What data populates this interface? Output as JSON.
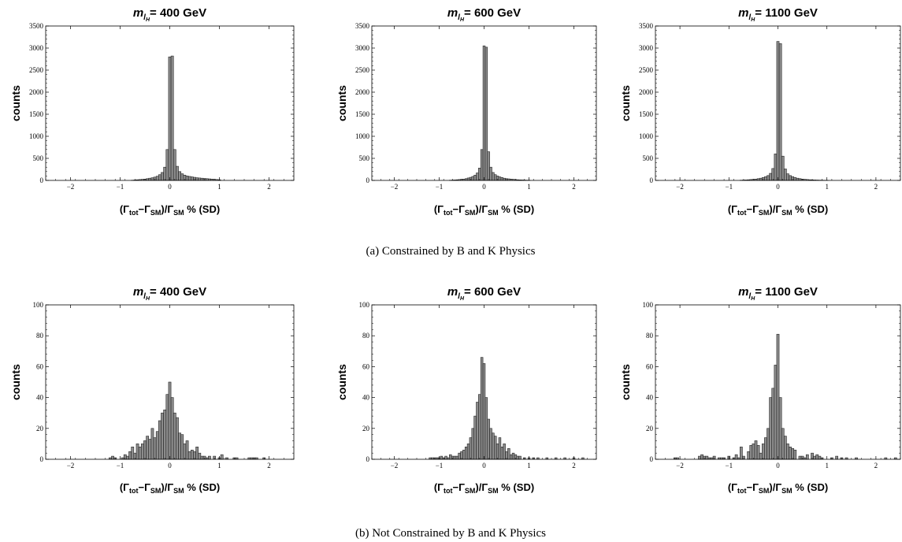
{
  "captions": {
    "a": "(a) Constrained by B and K Physics",
    "b": "(b) Not Constrained by B and K Physics"
  },
  "bin_width": 0.05,
  "chart_data": [
    {
      "type": "bar",
      "title": "m_{l_H} = 400 GeV",
      "title_mass": "400 GeV",
      "xlabel": "(Γtot−ΓSM)/ΓSM % (SD)",
      "ylabel": "counts",
      "xlim": [
        -2.5,
        2.5
      ],
      "ylim": [
        0,
        3500
      ],
      "xticks": [
        -2,
        -1,
        0,
        1,
        2
      ],
      "yticks": [
        0,
        500,
        1000,
        1500,
        2000,
        2500,
        3000,
        3500
      ],
      "x": [
        -0.75,
        -0.7,
        -0.65,
        -0.6,
        -0.55,
        -0.5,
        -0.45,
        -0.4,
        -0.35,
        -0.3,
        -0.25,
        -0.2,
        -0.15,
        -0.1,
        -0.05,
        0,
        0.05,
        0.1,
        0.15,
        0.2,
        0.25,
        0.3,
        0.35,
        0.4,
        0.45,
        0.5,
        0.55,
        0.6,
        0.65,
        0.7,
        0.75,
        0.8,
        0.85,
        0.9,
        0.95,
        1.0
      ],
      "values": [
        5,
        10,
        15,
        20,
        25,
        30,
        40,
        50,
        60,
        75,
        95,
        130,
        180,
        300,
        700,
        2800,
        2820,
        700,
        320,
        200,
        150,
        120,
        100,
        90,
        80,
        70,
        60,
        55,
        50,
        45,
        40,
        35,
        30,
        25,
        20,
        15
      ]
    },
    {
      "type": "bar",
      "title": "m_{l_H} = 600 GeV",
      "title_mass": "600 GeV",
      "xlabel": "(Γtot−ΓSM)/ΓSM % (SD)",
      "ylabel": "counts",
      "xlim": [
        -2.5,
        2.5
      ],
      "ylim": [
        0,
        3500
      ],
      "xticks": [
        -2,
        -1,
        0,
        1,
        2
      ],
      "yticks": [
        0,
        500,
        1000,
        1500,
        2000,
        2500,
        3000,
        3500
      ],
      "x": [
        -0.75,
        -0.7,
        -0.65,
        -0.6,
        -0.55,
        -0.5,
        -0.45,
        -0.4,
        -0.35,
        -0.3,
        -0.25,
        -0.2,
        -0.15,
        -0.1,
        -0.05,
        0,
        0.05,
        0.1,
        0.15,
        0.2,
        0.25,
        0.3,
        0.35,
        0.4,
        0.45,
        0.5,
        0.55,
        0.6,
        0.65,
        0.7,
        0.75,
        0.8,
        0.85,
        0.9,
        0.95,
        1.0
      ],
      "values": [
        5,
        8,
        10,
        15,
        20,
        25,
        30,
        40,
        55,
        70,
        90,
        120,
        170,
        280,
        700,
        3050,
        3020,
        650,
        300,
        180,
        130,
        100,
        80,
        65,
        50,
        40,
        35,
        30,
        25,
        20,
        15,
        12,
        10,
        8,
        6,
        5
      ]
    },
    {
      "type": "bar",
      "title": "m_{l_H} = 1100 GeV",
      "title_mass": "1100 GeV",
      "xlabel": "(Γtot−ΓSM)/ΓSM % (SD)",
      "ylabel": "counts",
      "xlim": [
        -2.5,
        2.5
      ],
      "ylim": [
        0,
        3500
      ],
      "xticks": [
        -2,
        -1,
        0,
        1,
        2
      ],
      "yticks": [
        0,
        500,
        1000,
        1500,
        2000,
        2500,
        3000,
        3500
      ],
      "x": [
        -0.75,
        -0.7,
        -0.65,
        -0.6,
        -0.55,
        -0.5,
        -0.45,
        -0.4,
        -0.35,
        -0.3,
        -0.25,
        -0.2,
        -0.15,
        -0.1,
        -0.05,
        0,
        0.05,
        0.1,
        0.15,
        0.2,
        0.25,
        0.3,
        0.35,
        0.4,
        0.45,
        0.5,
        0.55,
        0.6,
        0.65,
        0.7,
        0.75,
        0.8,
        0.85,
        0.9,
        0.95,
        1.0
      ],
      "values": [
        5,
        8,
        10,
        15,
        20,
        25,
        30,
        40,
        50,
        65,
        85,
        110,
        160,
        270,
        600,
        3150,
        3100,
        550,
        260,
        150,
        110,
        85,
        65,
        50,
        40,
        30,
        25,
        20,
        15,
        12,
        10,
        8,
        6,
        5,
        4,
        3
      ]
    },
    {
      "type": "bar",
      "title": "m_{l_H} = 400 GeV",
      "title_mass": "400 GeV",
      "xlabel": "(Γtot−ΓSM)/ΓSM % (SD)",
      "ylabel": "counts",
      "xlim": [
        -2.5,
        2.5
      ],
      "ylim": [
        0,
        100
      ],
      "xticks": [
        -2,
        -1,
        0,
        1,
        2
      ],
      "yticks": [
        0,
        20,
        40,
        60,
        80,
        100
      ],
      "x": [
        -1.2,
        -1.15,
        -1.1,
        -0.95,
        -0.9,
        -0.85,
        -0.8,
        -0.75,
        -0.7,
        -0.65,
        -0.6,
        -0.55,
        -0.5,
        -0.45,
        -0.4,
        -0.35,
        -0.3,
        -0.25,
        -0.2,
        -0.15,
        -0.1,
        -0.05,
        0,
        0.05,
        0.1,
        0.15,
        0.2,
        0.25,
        0.3,
        0.35,
        0.4,
        0.45,
        0.5,
        0.55,
        0.6,
        0.65,
        0.7,
        0.75,
        0.8,
        0.9,
        1.0,
        1.05,
        1.15,
        1.3,
        1.35,
        1.6,
        1.65,
        1.7,
        1.75,
        1.9
      ],
      "values": [
        1,
        2,
        1,
        1,
        3,
        2,
        5,
        8,
        4,
        10,
        8,
        10,
        12,
        15,
        13,
        20,
        14,
        18,
        25,
        30,
        32,
        42,
        50,
        40,
        30,
        27,
        17,
        16,
        10,
        12,
        5,
        6,
        5,
        8,
        4,
        2,
        2,
        1,
        2,
        2,
        1,
        3,
        1,
        1,
        1,
        1,
        1,
        1,
        1,
        1
      ]
    },
    {
      "type": "bar",
      "title": "m_{l_H} = 600 GeV",
      "title_mass": "600 GeV",
      "xlabel": "(Γtot−ΓSM)/ΓSM % (SD)",
      "ylabel": "counts",
      "xlim": [
        -2.5,
        2.5
      ],
      "ylim": [
        0,
        100
      ],
      "xticks": [
        -2,
        -1,
        0,
        1,
        2
      ],
      "yticks": [
        0,
        20,
        40,
        60,
        80,
        100
      ],
      "x": [
        -1.2,
        -1.15,
        -1.1,
        -1.05,
        -1.0,
        -0.95,
        -0.9,
        -0.85,
        -0.8,
        -0.75,
        -0.7,
        -0.65,
        -0.6,
        -0.55,
        -0.5,
        -0.45,
        -0.4,
        -0.35,
        -0.3,
        -0.25,
        -0.2,
        -0.15,
        -0.1,
        -0.05,
        0,
        0.05,
        0.1,
        0.15,
        0.2,
        0.25,
        0.3,
        0.35,
        0.4,
        0.45,
        0.5,
        0.55,
        0.6,
        0.65,
        0.7,
        0.75,
        0.8,
        0.9,
        1.0,
        1.1,
        1.2,
        1.4,
        1.6,
        1.8,
        2.0,
        2.2
      ],
      "values": [
        1,
        1,
        1,
        1,
        1,
        2,
        1,
        2,
        1,
        3,
        2,
        2,
        2,
        4,
        5,
        6,
        8,
        10,
        14,
        20,
        28,
        37,
        42,
        66,
        62,
        40,
        26,
        20,
        17,
        15,
        10,
        14,
        8,
        10,
        5,
        7,
        3,
        4,
        3,
        2,
        2,
        1,
        1,
        1,
        1,
        1,
        1,
        1,
        1,
        1
      ]
    },
    {
      "type": "bar",
      "title": "m_{l_H} = 1100 GeV",
      "title_mass": "1100 GeV",
      "xlabel": "(Γtot−ΓSM)/ΓSM % (SD)",
      "ylabel": "counts",
      "xlim": [
        -2.5,
        2.5
      ],
      "ylim": [
        0,
        100
      ],
      "xticks": [
        -2,
        -1,
        0,
        1,
        2
      ],
      "yticks": [
        0,
        20,
        40,
        60,
        80,
        100
      ],
      "x": [
        -2.1,
        -2.05,
        -1.6,
        -1.55,
        -1.5,
        -1.45,
        -1.4,
        -1.35,
        -1.3,
        -1.2,
        -1.15,
        -1.1,
        -1.0,
        -0.9,
        -0.85,
        -0.8,
        -0.75,
        -0.7,
        -0.6,
        -0.55,
        -0.5,
        -0.45,
        -0.4,
        -0.35,
        -0.3,
        -0.25,
        -0.2,
        -0.15,
        -0.1,
        -0.05,
        0,
        0.05,
        0.1,
        0.15,
        0.2,
        0.25,
        0.3,
        0.35,
        0.45,
        0.5,
        0.55,
        0.6,
        0.7,
        0.75,
        0.8,
        0.85,
        0.9,
        1.1,
        1.2,
        1.3,
        1.4,
        1.6,
        2.2,
        2.4
      ],
      "values": [
        1,
        1,
        2,
        3,
        2,
        2,
        1,
        1,
        2,
        1,
        1,
        1,
        2,
        1,
        3,
        1,
        8,
        2,
        5,
        9,
        10,
        12,
        9,
        4,
        10,
        14,
        20,
        40,
        46,
        61,
        81,
        40,
        20,
        15,
        10,
        8,
        7,
        6,
        2,
        2,
        1,
        3,
        4,
        2,
        3,
        2,
        1,
        1,
        2,
        1,
        1,
        1,
        1,
        1
      ]
    }
  ]
}
